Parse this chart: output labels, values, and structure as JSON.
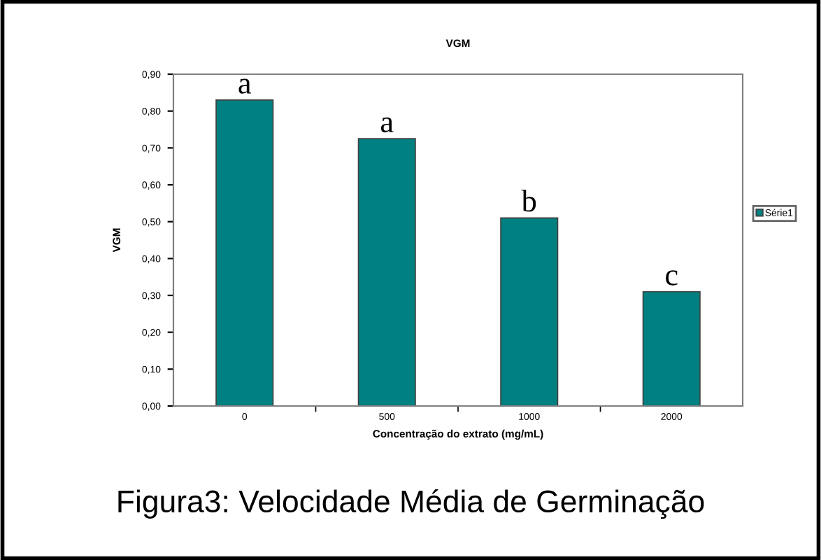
{
  "chart_data": {
    "type": "bar",
    "title": "VGM",
    "xlabel": "Concentração do extrato (mg/mL)",
    "ylabel": "VGM",
    "categories": [
      "0",
      "500",
      "1000",
      "2000"
    ],
    "series": [
      {
        "name": "Série1",
        "color": "#008080",
        "values": [
          0.83,
          0.725,
          0.51,
          0.31
        ]
      }
    ],
    "ylim": [
      0,
      0.9
    ],
    "yticks": [
      {
        "value": 0,
        "label": "0,00"
      },
      {
        "value": 0.1,
        "label": "0,10"
      },
      {
        "value": 0.2,
        "label": "0,20"
      },
      {
        "value": 0.3,
        "label": "0,30"
      },
      {
        "value": 0.4,
        "label": "0,40"
      },
      {
        "value": 0.5,
        "label": "0,50"
      },
      {
        "value": 0.6,
        "label": "0,60"
      },
      {
        "value": 0.7,
        "label": "0,70"
      },
      {
        "value": 0.8,
        "label": "0,80"
      },
      {
        "value": 0.9,
        "label": "0,90"
      }
    ],
    "legend": "right",
    "grid": false,
    "annotations": [
      {
        "text": "a",
        "x": "0",
        "y": 0.83
      },
      {
        "text": "a",
        "x": "500",
        "y": 0.725
      },
      {
        "text": "b",
        "x": "1000",
        "y": 0.51
      },
      {
        "text": "c",
        "x": "2000",
        "y": 0.31
      },
      "Figura3: Velocidade Média de Germinação"
    ]
  }
}
